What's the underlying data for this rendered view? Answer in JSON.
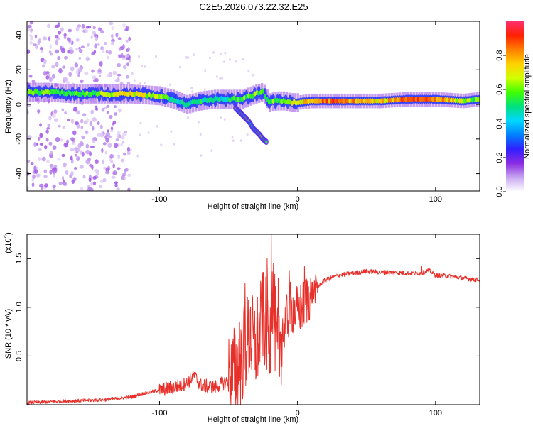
{
  "title": "C2E5.2026.073.22.32.E25",
  "chart_data": [
    {
      "type": "heatmap",
      "name": "spectrogram",
      "xlabel": "Height of straight line (km)",
      "ylabel": "Frequency (Hz)",
      "xlim": [
        -196,
        132
      ],
      "ylim": [
        -50,
        48
      ],
      "xticks": [
        -100,
        0,
        100
      ],
      "xtick_labels": [
        "-100",
        "0",
        "100"
      ],
      "yticks": [
        -40,
        -20,
        0,
        20,
        40
      ],
      "ytick_labels": [
        "-40",
        "-20",
        "0",
        "20",
        "40"
      ],
      "colorbar": {
        "label": "Normalized spectral amplitude",
        "range": [
          0,
          1
        ],
        "ticks": [
          0.0,
          0.2,
          0.4,
          0.6,
          0.8
        ],
        "tick_labels": [
          "0.0",
          "0.2",
          "0.4",
          "0.6",
          "0.8"
        ],
        "colormap": [
          "#ffffff",
          "#c8a8f0",
          "#8a2be2",
          "#3020ff",
          "#0080ff",
          "#00d8ff",
          "#00e080",
          "#40ff00",
          "#d0ff00",
          "#ffd000",
          "#ff8000",
          "#ff2000",
          "#ff3070"
        ]
      },
      "ridge": {
        "x": [
          -196,
          -180,
          -160,
          -140,
          -120,
          -100,
          -90,
          -80,
          -70,
          -60,
          -50,
          -40,
          -30,
          -25,
          -20,
          -15,
          -10,
          -5,
          0,
          10,
          20,
          40,
          60,
          80,
          100,
          120,
          132
        ],
        "freq": [
          7,
          7,
          6,
          6,
          6,
          5,
          3,
          0,
          2,
          3,
          3,
          3,
          6,
          7,
          1,
          2,
          2,
          1,
          1,
          2,
          2,
          2,
          2,
          3,
          3,
          2,
          3
        ],
        "amplitude": [
          0.55,
          0.6,
          0.55,
          0.6,
          0.7,
          0.6,
          0.5,
          0.45,
          0.5,
          0.45,
          0.5,
          0.55,
          0.6,
          0.5,
          0.55,
          0.6,
          0.6,
          0.65,
          0.7,
          0.75,
          0.85,
          0.8,
          0.7,
          0.9,
          0.85,
          0.65,
          0.55
        ]
      },
      "branch": {
        "x": [
          -45,
          -40,
          -35,
          -32,
          -28,
          -25,
          -22
        ],
        "freq": [
          -2,
          -6,
          -10,
          -14,
          -17,
          -20,
          -22
        ]
      }
    },
    {
      "type": "line",
      "name": "snr",
      "xlabel": "Height of straight line (km)",
      "ylabel": "SNR (10 * v/v)",
      "scale_label": "(x10",
      "scale_exponent": "4",
      "xlim": [
        -196,
        132
      ],
      "ylim": [
        0,
        1.75
      ],
      "xticks": [
        -100,
        0,
        100
      ],
      "xtick_labels": [
        "-100",
        "0",
        "100"
      ],
      "yticks": [
        0.5,
        1.0,
        1.5
      ],
      "ytick_labels": [
        "0.5",
        "1.0",
        "1.5"
      ],
      "color": "#e8302a",
      "series": [
        {
          "name": "SNR",
          "x": [
            -196,
            -180,
            -160,
            -140,
            -120,
            -110,
            -100,
            -90,
            -80,
            -75,
            -70,
            -60,
            -50,
            -45,
            -40,
            -35,
            -30,
            -25,
            -20,
            -18,
            -15,
            -10,
            -5,
            0,
            5,
            10,
            20,
            30,
            40,
            50,
            60,
            70,
            80,
            90,
            95,
            100,
            110,
            120,
            132
          ],
          "y": [
            0.02,
            0.03,
            0.04,
            0.05,
            0.08,
            0.12,
            0.15,
            0.18,
            0.22,
            0.3,
            0.2,
            0.18,
            0.25,
            0.35,
            0.5,
            0.7,
            0.6,
            0.9,
            0.7,
            1.2,
            0.5,
            0.8,
            1.0,
            0.95,
            1.05,
            1.15,
            1.28,
            1.33,
            1.35,
            1.37,
            1.36,
            1.36,
            1.35,
            1.35,
            1.38,
            1.33,
            1.32,
            1.3,
            1.28
          ]
        }
      ],
      "spikes": [
        {
          "x": -42,
          "y": 0.85
        },
        {
          "x": -38,
          "y": 1.25
        },
        {
          "x": -34,
          "y": 1.0
        },
        {
          "x": -29,
          "y": 1.1
        },
        {
          "x": -22,
          "y": 1.5
        },
        {
          "x": -19,
          "y": 1.75
        },
        {
          "x": -14,
          "y": 1.3
        },
        {
          "x": -6,
          "y": 1.38
        },
        {
          "x": 5,
          "y": 1.42
        },
        {
          "x": 90,
          "y": 1.42
        }
      ]
    }
  ]
}
